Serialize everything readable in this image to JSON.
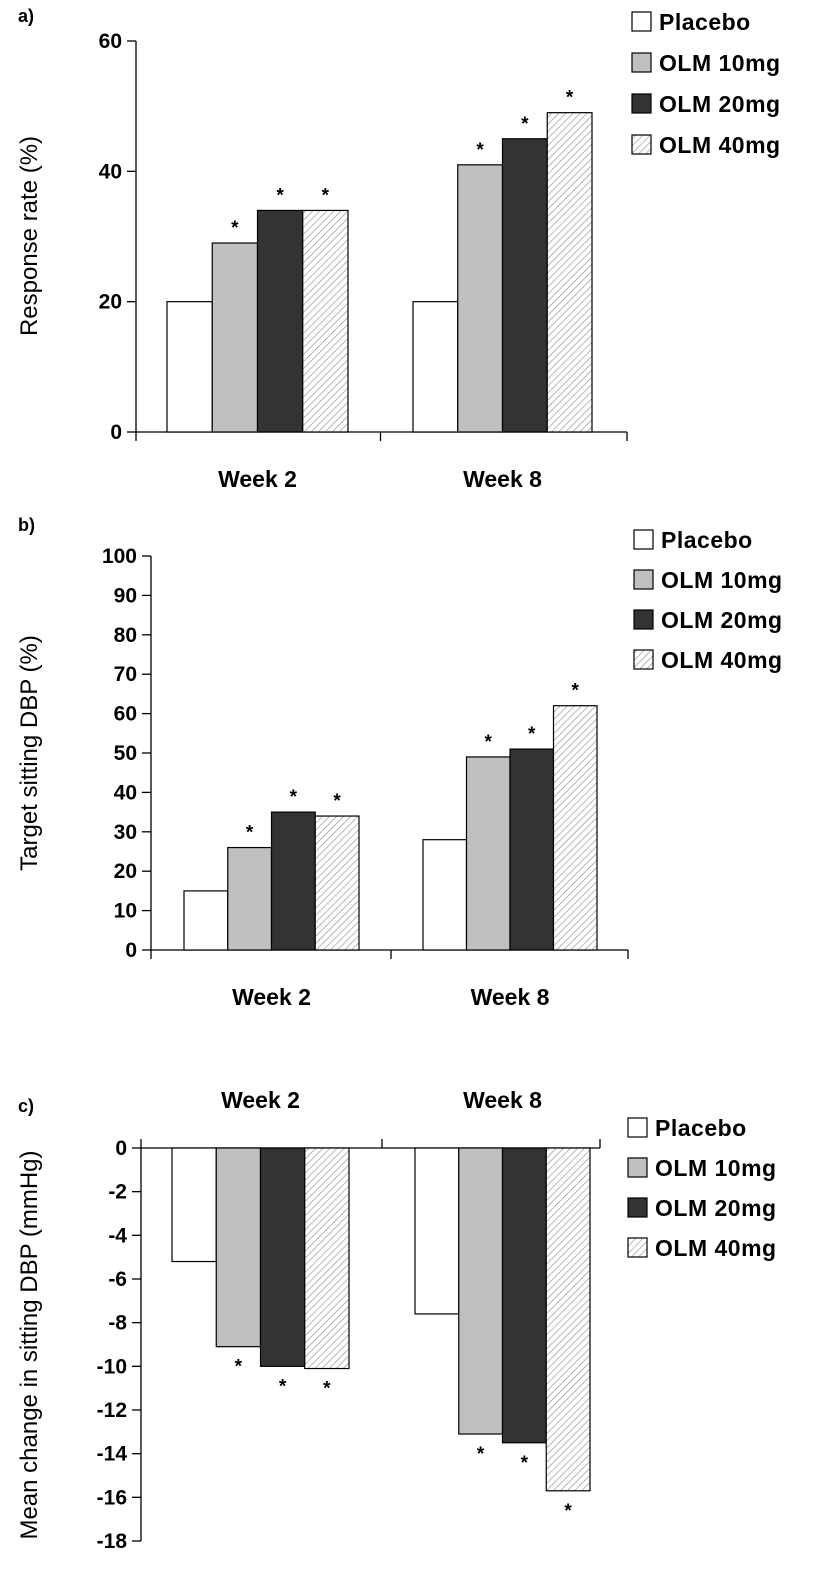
{
  "chart_data": [
    {
      "type": "bar",
      "panel_label": "a)",
      "title": "",
      "xlabel": "",
      "ylabel": "Response rate (%)",
      "ylim": [
        0,
        60
      ],
      "yticks": [
        0,
        20,
        40,
        60
      ],
      "categories": [
        "Week 2",
        "Week 8"
      ],
      "category_label_position": "bottom",
      "series": [
        {
          "name": "Placebo",
          "values": [
            20,
            20
          ],
          "significant": [
            false,
            false
          ]
        },
        {
          "name": "OLM 10mg",
          "values": [
            29,
            41
          ],
          "significant": [
            true,
            true
          ]
        },
        {
          "name": "OLM 20mg",
          "values": [
            34,
            45
          ],
          "significant": [
            true,
            true
          ]
        },
        {
          "name": "OLM 40mg",
          "values": [
            34,
            49
          ],
          "significant": [
            true,
            true
          ]
        }
      ],
      "significance_marker": "*",
      "legend_position": "top-right",
      "grid": false
    },
    {
      "type": "bar",
      "panel_label": "b)",
      "title": "",
      "xlabel": "",
      "ylabel": "Target sitting DBP (%)",
      "ylim": [
        0,
        100
      ],
      "yticks": [
        0,
        10,
        20,
        30,
        40,
        50,
        60,
        70,
        80,
        90,
        100
      ],
      "categories": [
        "Week 2",
        "Week 8"
      ],
      "category_label_position": "bottom",
      "series": [
        {
          "name": "Placebo",
          "values": [
            15,
            28
          ],
          "significant": [
            false,
            false
          ]
        },
        {
          "name": "OLM 10mg",
          "values": [
            26,
            49
          ],
          "significant": [
            true,
            true
          ]
        },
        {
          "name": "OLM 20mg",
          "values": [
            35,
            51
          ],
          "significant": [
            true,
            true
          ]
        },
        {
          "name": "OLM 40mg",
          "values": [
            34,
            62
          ],
          "significant": [
            true,
            true
          ]
        }
      ],
      "significance_marker": "*",
      "legend_position": "top-right",
      "grid": false
    },
    {
      "type": "bar",
      "panel_label": "c)",
      "title": "",
      "xlabel": "",
      "ylabel": "Mean change in sitting DBP (mmHg)",
      "ylim": [
        -18,
        0
      ],
      "yticks": [
        0,
        -2,
        -4,
        -6,
        -8,
        -10,
        -12,
        -14,
        -16,
        -18
      ],
      "categories": [
        "Week 2",
        "Week 8"
      ],
      "category_label_position": "top",
      "series": [
        {
          "name": "Placebo",
          "values": [
            -5.2,
            -7.6
          ],
          "significant": [
            false,
            false
          ]
        },
        {
          "name": "OLM 10mg",
          "values": [
            -9.1,
            -13.1
          ],
          "significant": [
            true,
            true
          ]
        },
        {
          "name": "OLM 20mg",
          "values": [
            -10.0,
            -13.5
          ],
          "significant": [
            true,
            true
          ]
        },
        {
          "name": "OLM 40mg",
          "values": [
            -10.1,
            -15.7
          ],
          "significant": [
            true,
            true
          ]
        }
      ],
      "significance_marker": "*",
      "legend_position": "top-right",
      "grid": false
    }
  ],
  "series_styles": [
    {
      "fill": "#ffffff",
      "pattern": "none"
    },
    {
      "fill": "#c0c0c0",
      "pattern": "none"
    },
    {
      "fill": "#333333",
      "pattern": "none"
    },
    {
      "fill": "#ffffff",
      "pattern": "diagonal-hatch"
    }
  ]
}
